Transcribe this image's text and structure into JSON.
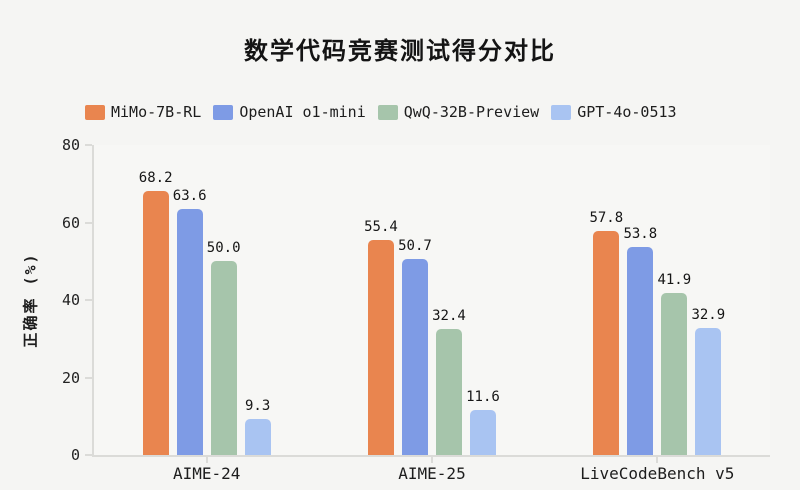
{
  "page": {
    "background": "#f5f5f3"
  },
  "chart_data": {
    "type": "bar",
    "title": "数学代码竞赛测试得分对比",
    "ylabel": "正确率 (%)",
    "xlabel": "",
    "ylim": [
      0,
      80
    ],
    "yticks": [
      0,
      20,
      40,
      60,
      80
    ],
    "grid": false,
    "legend_position": "top-left",
    "value_labels": "one-decimal",
    "axis_color": "#dbdbd8",
    "text_color": "#1d1d1d",
    "categories": [
      "AIME-24",
      "AIME-25",
      "LiveCodeBench v5"
    ],
    "series": [
      {
        "name": "MiMo-7B-RL",
        "color": "#E9854F",
        "values": [
          68.2,
          55.4,
          57.8
        ]
      },
      {
        "name": "OpenAI o1-mini",
        "color": "#7E9BE5",
        "values": [
          63.6,
          50.7,
          53.8
        ]
      },
      {
        "name": "QwQ-32B-Preview",
        "color": "#A6C5AB",
        "values": [
          50.0,
          32.4,
          41.9
        ]
      },
      {
        "name": "GPT-4o-0513",
        "color": "#A9C4F2",
        "values": [
          9.3,
          11.6,
          32.9
        ]
      }
    ]
  }
}
